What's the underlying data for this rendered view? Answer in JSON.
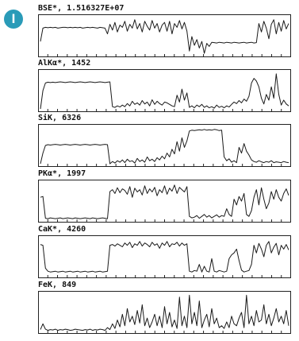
{
  "badge": {
    "label": "I",
    "color": "#2a9bb8"
  },
  "style": {
    "line_color": "#1a1a1a",
    "frame_color": "#222222"
  },
  "chart_data": [
    {
      "type": "line",
      "title": "BSE*, 1.516327E+07",
      "ylim": [
        0,
        100
      ],
      "xlim": [
        0,
        100
      ],
      "x": [
        0,
        1,
        2,
        3,
        4,
        5,
        6,
        7,
        8,
        9,
        10,
        11,
        12,
        13,
        14,
        15,
        16,
        17,
        18,
        19,
        20,
        21,
        22,
        23,
        24,
        25,
        26,
        27,
        28,
        29,
        30,
        31,
        32,
        33,
        34,
        35,
        36,
        37,
        38,
        39,
        40,
        41,
        42,
        43,
        44,
        45,
        46,
        47,
        48,
        49,
        50,
        51,
        52,
        53,
        54,
        55,
        56,
        57,
        58,
        59,
        60,
        61,
        62,
        63,
        64,
        65,
        66,
        67,
        68,
        69,
        70,
        71,
        72,
        73,
        74,
        75,
        76,
        77,
        78,
        79,
        80,
        81,
        82,
        83,
        84,
        85,
        86,
        87,
        88,
        89,
        90,
        91,
        92,
        93,
        94,
        95,
        96,
        97,
        98,
        99,
        100
      ],
      "values": [
        35,
        70,
        72,
        71,
        72,
        71,
        72,
        70,
        71,
        72,
        72,
        71,
        72,
        71,
        72,
        71,
        72,
        70,
        71,
        72,
        71,
        72,
        71,
        70,
        72,
        71,
        70,
        55,
        80,
        65,
        85,
        60,
        78,
        72,
        88,
        62,
        80,
        70,
        92,
        68,
        82,
        60,
        88,
        75,
        65,
        90,
        70,
        82,
        60,
        78,
        85,
        62,
        88,
        55,
        82,
        72,
        90,
        68,
        85,
        62,
        10,
        48,
        25,
        40,
        18,
        35,
        4,
        30,
        22,
        33,
        32,
        31,
        33,
        32,
        31,
        33,
        32,
        31,
        33,
        32,
        31,
        32,
        33,
        31,
        32,
        33,
        31,
        32,
        82,
        60,
        88,
        70,
        42,
        80,
        92,
        55,
        85,
        62,
        90,
        68,
        82
      ]
    },
    {
      "type": "line",
      "title": "AlKα*, 1452",
      "ylim": [
        0,
        100
      ],
      "xlim": [
        0,
        100
      ],
      "x": [
        0,
        1,
        2,
        3,
        4,
        5,
        6,
        7,
        8,
        9,
        10,
        11,
        12,
        13,
        14,
        15,
        16,
        17,
        18,
        19,
        20,
        21,
        22,
        23,
        24,
        25,
        26,
        27,
        28,
        29,
        30,
        31,
        32,
        33,
        34,
        35,
        36,
        37,
        38,
        39,
        40,
        41,
        42,
        43,
        44,
        45,
        46,
        47,
        48,
        49,
        50,
        51,
        52,
        53,
        54,
        55,
        56,
        57,
        58,
        59,
        60,
        61,
        62,
        63,
        64,
        65,
        66,
        67,
        68,
        69,
        70,
        71,
        72,
        73,
        74,
        75,
        76,
        77,
        78,
        79,
        80,
        81,
        82,
        83,
        84,
        85,
        86,
        87,
        88,
        89,
        90,
        91,
        92,
        93,
        94,
        95,
        96,
        97,
        98,
        99,
        100
      ],
      "values": [
        2,
        50,
        70,
        72,
        71,
        72,
        71,
        72,
        73,
        72,
        71,
        72,
        73,
        72,
        71,
        72,
        73,
        72,
        71,
        72,
        73,
        72,
        71,
        72,
        73,
        72,
        71,
        72,
        73,
        8,
        6,
        10,
        7,
        12,
        8,
        16,
        10,
        22,
        14,
        18,
        12,
        24,
        15,
        20,
        10,
        26,
        14,
        22,
        16,
        12,
        20,
        18,
        14,
        10,
        8,
        38,
        20,
        54,
        25,
        44,
        6,
        10,
        5,
        12,
        8,
        14,
        6,
        10,
        5,
        8,
        4,
        12,
        6,
        9,
        5,
        10,
        7,
        14,
        20,
        16,
        24,
        18,
        28,
        22,
        35,
        70,
        82,
        75,
        60,
        30,
        15,
        40,
        25,
        60,
        30,
        94,
        40,
        12,
        25,
        15,
        10
      ]
    },
    {
      "type": "line",
      "title": "SiK, 6326",
      "ylim": [
        0,
        100
      ],
      "xlim": [
        0,
        100
      ],
      "x": [
        0,
        1,
        2,
        3,
        4,
        5,
        6,
        7,
        8,
        9,
        10,
        11,
        12,
        13,
        14,
        15,
        16,
        17,
        18,
        19,
        20,
        21,
        22,
        23,
        24,
        25,
        26,
        27,
        28,
        29,
        30,
        31,
        32,
        33,
        34,
        35,
        36,
        37,
        38,
        39,
        40,
        41,
        42,
        43,
        44,
        45,
        46,
        47,
        48,
        49,
        50,
        51,
        52,
        53,
        54,
        55,
        56,
        57,
        58,
        59,
        60,
        61,
        62,
        63,
        64,
        65,
        66,
        67,
        68,
        69,
        70,
        71,
        72,
        73,
        74,
        75,
        76,
        77,
        78,
        79,
        80,
        81,
        82,
        83,
        84,
        85,
        86,
        87,
        88,
        89,
        90,
        91,
        92,
        93,
        94,
        95,
        96,
        97,
        98,
        99,
        100
      ],
      "values": [
        2,
        30,
        50,
        52,
        51,
        52,
        53,
        52,
        51,
        52,
        53,
        52,
        51,
        52,
        53,
        52,
        51,
        52,
        53,
        52,
        51,
        52,
        53,
        52,
        51,
        52,
        53,
        52,
        2,
        8,
        4,
        10,
        6,
        12,
        5,
        14,
        8,
        10,
        4,
        16,
        8,
        12,
        6,
        20,
        10,
        14,
        8,
        18,
        12,
        22,
        15,
        30,
        20,
        40,
        28,
        60,
        35,
        70,
        45,
        62,
        88,
        90,
        89,
        90,
        91,
        90,
        92,
        90,
        91,
        90,
        92,
        91,
        89,
        90,
        20,
        10,
        15,
        6,
        10,
        5,
        45,
        30,
        55,
        35,
        25,
        12,
        8,
        6,
        10,
        7,
        5,
        8,
        6,
        10,
        5,
        7,
        6,
        5,
        8,
        6,
        5
      ]
    },
    {
      "type": "line",
      "title": "PKα*, 1997",
      "ylim": [
        0,
        100
      ],
      "xlim": [
        0,
        100
      ],
      "x": [
        0,
        1,
        2,
        3,
        4,
        5,
        6,
        7,
        8,
        9,
        10,
        11,
        12,
        13,
        14,
        15,
        16,
        17,
        18,
        19,
        20,
        21,
        22,
        23,
        24,
        25,
        26,
        27,
        28,
        29,
        30,
        31,
        32,
        33,
        34,
        35,
        36,
        37,
        38,
        39,
        40,
        41,
        42,
        43,
        44,
        45,
        46,
        47,
        48,
        49,
        50,
        51,
        52,
        53,
        54,
        55,
        56,
        57,
        58,
        59,
        60,
        61,
        62,
        63,
        64,
        65,
        66,
        67,
        68,
        69,
        70,
        71,
        72,
        73,
        74,
        75,
        76,
        77,
        78,
        79,
        80,
        81,
        82,
        83,
        84,
        85,
        86,
        87,
        88,
        89,
        90,
        91,
        92,
        93,
        94,
        95,
        96,
        97,
        98,
        99,
        100
      ],
      "values": [
        60,
        62,
        5,
        4,
        6,
        5,
        4,
        5,
        6,
        4,
        5,
        6,
        5,
        4,
        6,
        5,
        4,
        5,
        6,
        5,
        4,
        6,
        5,
        4,
        5,
        6,
        5,
        4,
        75,
        80,
        70,
        85,
        72,
        82,
        78,
        68,
        88,
        60,
        84,
        74,
        80,
        66,
        90,
        70,
        82,
        74,
        86,
        64,
        80,
        72,
        90,
        68,
        84,
        76,
        92,
        70,
        86,
        80,
        74,
        88,
        10,
        6,
        8,
        12,
        5,
        10,
        15,
        8,
        12,
        6,
        10,
        14,
        8,
        12,
        10,
        30,
        15,
        10,
        55,
        40,
        62,
        50,
        70,
        15,
        10,
        25,
        60,
        80,
        40,
        85,
        55,
        30,
        45,
        75,
        55,
        80,
        60,
        50,
        70,
        82,
        65
      ]
    },
    {
      "type": "line",
      "title": "CaK*, 4260",
      "ylim": [
        0,
        100
      ],
      "xlim": [
        0,
        100
      ],
      "x": [
        0,
        1,
        2,
        3,
        4,
        5,
        6,
        7,
        8,
        9,
        10,
        11,
        12,
        13,
        14,
        15,
        16,
        17,
        18,
        19,
        20,
        21,
        22,
        23,
        24,
        25,
        26,
        27,
        28,
        29,
        30,
        31,
        32,
        33,
        34,
        35,
        36,
        37,
        38,
        39,
        40,
        41,
        42,
        43,
        44,
        45,
        46,
        47,
        48,
        49,
        50,
        51,
        52,
        53,
        54,
        55,
        56,
        57,
        58,
        59,
        60,
        61,
        62,
        63,
        64,
        65,
        66,
        67,
        68,
        69,
        70,
        71,
        72,
        73,
        74,
        75,
        76,
        77,
        78,
        79,
        80,
        81,
        82,
        83,
        84,
        85,
        86,
        87,
        88,
        89,
        90,
        91,
        92,
        93,
        94,
        95,
        96,
        97,
        98,
        99,
        100
      ],
      "values": [
        82,
        80,
        20,
        12,
        10,
        11,
        12,
        10,
        11,
        12,
        10,
        11,
        12,
        10,
        11,
        12,
        10,
        11,
        12,
        10,
        11,
        12,
        10,
        11,
        12,
        10,
        11,
        12,
        80,
        82,
        78,
        84,
        80,
        76,
        86,
        80,
        88,
        74,
        84,
        80,
        90,
        78,
        86,
        82,
        76,
        88,
        80,
        84,
        72,
        86,
        80,
        90,
        76,
        84,
        82,
        88,
        78,
        86,
        80,
        84,
        12,
        10,
        14,
        12,
        30,
        10,
        25,
        12,
        10,
        45,
        12,
        10,
        14,
        12,
        10,
        12,
        45,
        55,
        60,
        70,
        40,
        15,
        10,
        12,
        14,
        30,
        80,
        60,
        85,
        70,
        50,
        80,
        90,
        60,
        75,
        85,
        55,
        80,
        70,
        82,
        68
      ]
    },
    {
      "type": "line",
      "title": "FeK, 849",
      "ylim": [
        0,
        100
      ],
      "xlim": [
        0,
        100
      ],
      "x": [
        0,
        1,
        2,
        3,
        4,
        5,
        6,
        7,
        8,
        9,
        10,
        11,
        12,
        13,
        14,
        15,
        16,
        17,
        18,
        19,
        20,
        21,
        22,
        23,
        24,
        25,
        26,
        27,
        28,
        29,
        30,
        31,
        32,
        33,
        34,
        35,
        36,
        37,
        38,
        39,
        40,
        41,
        42,
        43,
        44,
        45,
        46,
        47,
        48,
        49,
        50,
        51,
        52,
        53,
        54,
        55,
        56,
        57,
        58,
        59,
        60,
        61,
        62,
        63,
        64,
        65,
        66,
        67,
        68,
        69,
        70,
        71,
        72,
        73,
        74,
        75,
        76,
        77,
        78,
        79,
        80,
        81,
        82,
        83,
        84,
        85,
        86,
        87,
        88,
        89,
        90,
        91,
        92,
        93,
        94,
        95,
        96,
        97,
        98,
        99,
        100
      ],
      "values": [
        5,
        20,
        6,
        3,
        5,
        4,
        6,
        3,
        5,
        4,
        6,
        5,
        3,
        4,
        6,
        5,
        4,
        3,
        5,
        4,
        6,
        3,
        5,
        4,
        6,
        5,
        3,
        10,
        5,
        20,
        8,
        30,
        12,
        45,
        15,
        60,
        25,
        40,
        18,
        55,
        22,
        70,
        15,
        35,
        10,
        25,
        45,
        15,
        40,
        10,
        65,
        20,
        50,
        12,
        30,
        8,
        90,
        15,
        40,
        10,
        95,
        20,
        50,
        15,
        80,
        10,
        30,
        45,
        12,
        60,
        20,
        35,
        10,
        15,
        8,
        25,
        10,
        40,
        20,
        15,
        35,
        50,
        10,
        95,
        20,
        40,
        15,
        55,
        25,
        30,
        70,
        20,
        45,
        15,
        35,
        60,
        25,
        40,
        20,
        55,
        15
      ]
    }
  ]
}
